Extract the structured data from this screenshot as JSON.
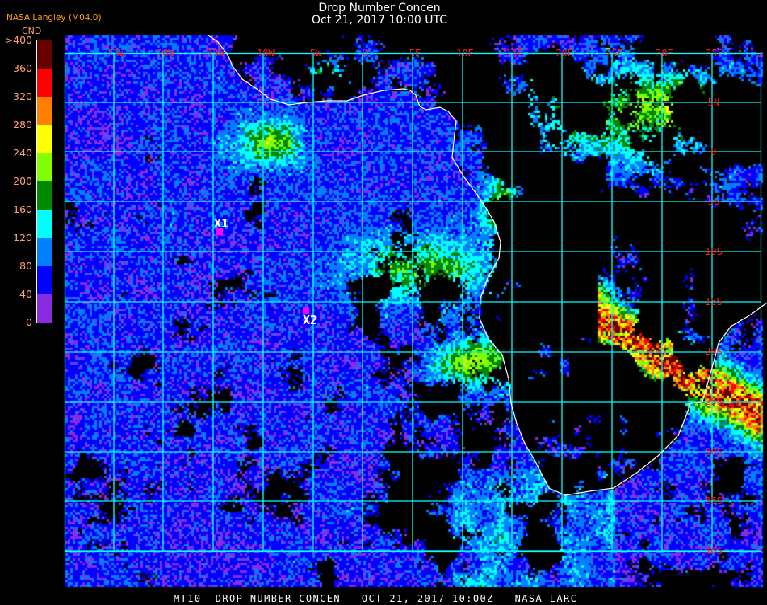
{
  "header": {
    "title": "Drop Number Concen",
    "subtitle": "Oct 21, 2017 10:00 UTC",
    "org": "NASA Langley (M04.0)"
  },
  "legend": {
    "unit": "CND",
    "labels": [
      ">400",
      "360",
      "320",
      "280",
      "240",
      "200",
      "160",
      "120",
      "80",
      "40",
      "0"
    ],
    "colors": [
      "#660000",
      "#ff0000",
      "#ff8000",
      "#ffff00",
      "#80ff00",
      "#008800",
      "#00ffff",
      "#0080ff",
      "#0000ff",
      "#8a2be2"
    ]
  },
  "map": {
    "lon_labels": [
      "25W",
      "20W",
      "15W",
      "10W",
      "5W",
      "0",
      "5E",
      "10E",
      "15E",
      "20E",
      "25E",
      "30E",
      "35E"
    ],
    "lat_labels": [
      "5N",
      "0",
      "5S",
      "10S",
      "15S",
      "20S",
      "25S",
      "30S",
      "35S",
      "40S"
    ],
    "grid_color": "#00ffff",
    "coast_color": "#ffffff",
    "markers": [
      {
        "label": "X1",
        "color": "#ff00ff"
      },
      {
        "label": "X2",
        "color": "#ff00ff"
      }
    ]
  },
  "footer": {
    "caption": "MT10  DROP NUMBER CONCEN   OCT 21, 2017 10:00Z   NASA LARC"
  }
}
